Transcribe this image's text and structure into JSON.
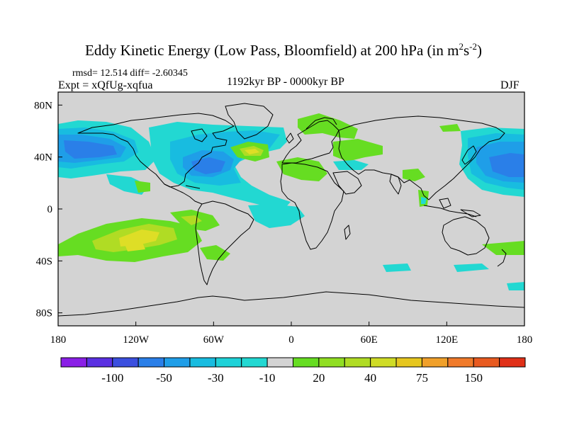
{
  "title": {
    "main": "Eddy Kinetic Energy (Low Pass, Bloomfield) at 200 hPa (in m",
    "sup1": "2",
    "mid": "s",
    "sup2": "-2",
    "end": ")"
  },
  "stats": "rmsd= 12.514 diff= -2.60345",
  "expt": "Expt = xQfUg-xqfua",
  "period": "1192kyr BP - 0000kyr BP",
  "season": "DJF",
  "colors": {
    "background": "#d3d3d3",
    "coast": "#000000",
    "green": "#66dd22",
    "yellowgreen": "#b0dc24",
    "yellow": "#dede26",
    "cyan": "#22d8d2",
    "teal": "#18bce0",
    "lightblue": "#1f9ee8",
    "blue": "#2a7fe8"
  },
  "chart_data": {
    "type": "filled-contour-map",
    "variable": "Eddy Kinetic Energy difference at 200 hPa",
    "units": "m2 s-2",
    "x_axis": {
      "range": [
        -180,
        180
      ],
      "ticks": [
        -180,
        -120,
        -60,
        0,
        60,
        120,
        180
      ],
      "tick_labels": [
        "180",
        "120W",
        "60W",
        "0",
        "60E",
        "120E",
        "180"
      ]
    },
    "y_axis": {
      "range": [
        -90,
        90
      ],
      "ticks": [
        80,
        40,
        0,
        -40,
        -80
      ],
      "tick_labels": [
        "80N",
        "40N",
        "0",
        "40S",
        "80S"
      ]
    },
    "colorbar": {
      "colors": [
        "#8a1fe6",
        "#5a30e2",
        "#3b4fdf",
        "#2a7fe8",
        "#1f9ee8",
        "#18bce0",
        "#1ed2d8",
        "#22d8d2",
        "#d3d3d3",
        "#66dd22",
        "#90de22",
        "#b0dc24",
        "#cfdc26",
        "#e6c61e",
        "#f0a02a",
        "#f07a2a",
        "#e85a20",
        "#e03018"
      ],
      "labels": [
        "-100",
        "-50",
        "-30",
        "-10",
        "20",
        "40",
        "75",
        "150"
      ]
    },
    "anomalies": [
      {
        "lon": -160,
        "lat": 40,
        "value": -50,
        "level": "blue"
      },
      {
        "lon": -155,
        "lat": 50,
        "value": -30,
        "level": "lightblue"
      },
      {
        "lon": -150,
        "lat": 25,
        "value": -10,
        "level": "cyan"
      },
      {
        "lon": -65,
        "lat": 35,
        "value": -50,
        "level": "blue"
      },
      {
        "lon": -60,
        "lat": 50,
        "value": -30,
        "level": "lightblue"
      },
      {
        "lon": -35,
        "lat": 22,
        "value": -10,
        "level": "cyan"
      },
      {
        "lon": -35,
        "lat": 45,
        "value": 30,
        "level": "yellow"
      },
      {
        "lon": 25,
        "lat": 55,
        "value": 20,
        "level": "green"
      },
      {
        "lon": 50,
        "lat": 48,
        "value": 20,
        "level": "green"
      },
      {
        "lon": 25,
        "lat": 33,
        "value": 20,
        "level": "green"
      },
      {
        "lon": 145,
        "lat": 40,
        "value": -50,
        "level": "blue"
      },
      {
        "lon": 170,
        "lat": 55,
        "value": -30,
        "level": "lightblue"
      },
      {
        "lon": -120,
        "lat": -15,
        "value": 20,
        "level": "green"
      },
      {
        "lon": -130,
        "lat": -35,
        "value": 40,
        "level": "yellow"
      },
      {
        "lon": -105,
        "lat": -20,
        "value": 30,
        "level": "yellowgreen"
      },
      {
        "lon": -10,
        "lat": -8,
        "value": -10,
        "level": "cyan"
      },
      {
        "lon": 95,
        "lat": -45,
        "value": -10,
        "level": "cyan"
      },
      {
        "lon": 170,
        "lat": -30,
        "value": 20,
        "level": "green"
      }
    ]
  }
}
